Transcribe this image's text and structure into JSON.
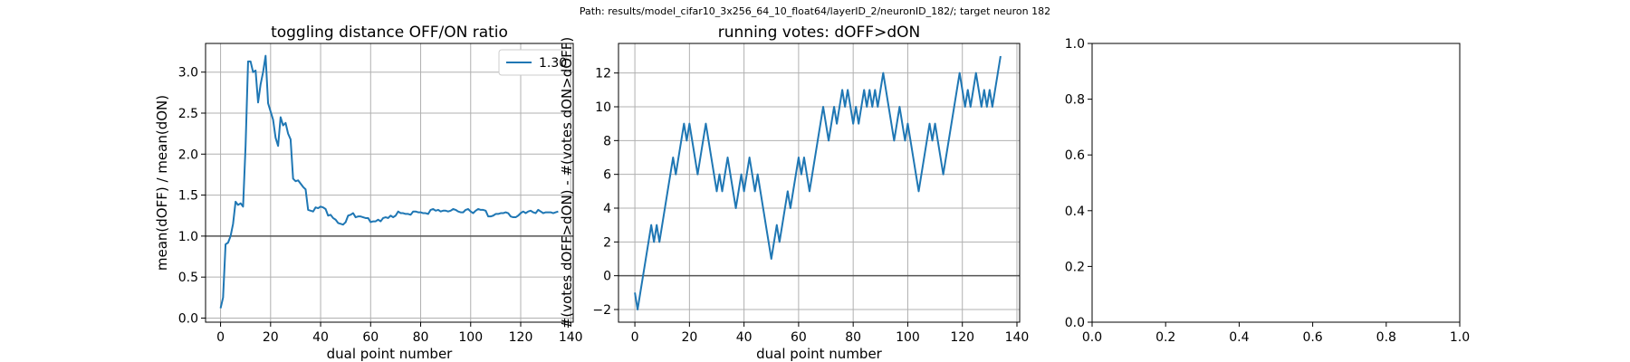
{
  "suptitle": "Path: results/model_cifar10_3x256_64_10_float64/layerID_2/neuronID_182/; target neuron 182",
  "line_color": "#1f77b4",
  "ref_line_color": "#555555",
  "chart_data": [
    {
      "type": "line",
      "title": "toggling distance OFF/ON ratio",
      "xlabel": "dual point number",
      "ylabel": "mean(dOFF) / mean(dON)",
      "xlim": [
        -6,
        141
      ],
      "ylim": [
        -0.05,
        3.35
      ],
      "xticks": [
        0,
        20,
        40,
        60,
        80,
        100,
        120,
        140
      ],
      "yticks": [
        0.0,
        0.5,
        1.0,
        1.5,
        2.0,
        2.5,
        3.0
      ],
      "ytick_labels": [
        "0.0",
        "0.5",
        "1.0",
        "1.5",
        "2.0",
        "2.5",
        "3.0"
      ],
      "grid": true,
      "reference_line": 1.0,
      "legend": {
        "position": "top-right",
        "entries": [
          "1.30"
        ]
      },
      "series": [
        {
          "name": "1.30",
          "values": [
            0.12,
            0.25,
            0.9,
            0.92,
            1.0,
            1.15,
            1.42,
            1.38,
            1.4,
            1.36,
            2.1,
            3.13,
            3.13,
            3.0,
            3.02,
            2.63,
            2.85,
            3.0,
            3.2,
            2.62,
            2.52,
            2.42,
            2.2,
            2.1,
            2.45,
            2.35,
            2.38,
            2.25,
            2.18,
            1.7,
            1.67,
            1.68,
            1.64,
            1.6,
            1.57,
            1.32,
            1.31,
            1.3,
            1.35,
            1.34,
            1.36,
            1.35,
            1.33,
            1.25,
            1.26,
            1.22,
            1.2,
            1.16,
            1.15,
            1.14,
            1.17,
            1.25,
            1.26,
            1.28,
            1.23,
            1.24,
            1.24,
            1.23,
            1.22,
            1.22,
            1.17,
            1.18,
            1.18,
            1.2,
            1.18,
            1.22,
            1.23,
            1.22,
            1.25,
            1.23,
            1.25,
            1.3,
            1.28,
            1.28,
            1.27,
            1.27,
            1.26,
            1.3,
            1.3,
            1.29,
            1.29,
            1.28,
            1.28,
            1.27,
            1.32,
            1.33,
            1.31,
            1.32,
            1.3,
            1.31,
            1.31,
            1.3,
            1.31,
            1.33,
            1.32,
            1.3,
            1.29,
            1.29,
            1.32,
            1.33,
            1.3,
            1.28,
            1.31,
            1.33,
            1.32,
            1.32,
            1.31,
            1.24,
            1.24,
            1.25,
            1.27,
            1.27,
            1.28,
            1.28,
            1.29,
            1.28,
            1.24,
            1.23,
            1.23,
            1.25,
            1.28,
            1.3,
            1.28,
            1.3,
            1.31,
            1.29,
            1.28,
            1.32,
            1.3,
            1.28,
            1.29,
            1.29,
            1.29,
            1.28,
            1.29,
            1.3
          ]
        }
      ]
    },
    {
      "type": "line",
      "title": "running votes: dOFF>dON",
      "xlabel": "dual point number",
      "ylabel": "#(votes dOFF>dON) - #(votes dON>dOFF)",
      "xlim": [
        -6,
        141
      ],
      "ylim": [
        -2.75,
        13.75
      ],
      "xticks": [
        0,
        20,
        40,
        60,
        80,
        100,
        120,
        140
      ],
      "yticks": [
        -2,
        0,
        2,
        4,
        6,
        8,
        10,
        12
      ],
      "ytick_labels": [
        "−2",
        "0",
        "2",
        "4",
        "6",
        "8",
        "10",
        "12"
      ],
      "grid": true,
      "reference_line": 0,
      "series": [
        {
          "values": [
            -1,
            -2,
            -1,
            0,
            1,
            2,
            3,
            2,
            3,
            2,
            3,
            4,
            5,
            6,
            7,
            6,
            7,
            8,
            9,
            8,
            9,
            8,
            7,
            6,
            7,
            8,
            9,
            8,
            7,
            6,
            5,
            6,
            5,
            6,
            7,
            6,
            5,
            4,
            5,
            6,
            5,
            6,
            7,
            6,
            5,
            6,
            5,
            4,
            3,
            2,
            1,
            2,
            3,
            2,
            3,
            4,
            5,
            4,
            5,
            6,
            7,
            6,
            7,
            6,
            5,
            6,
            7,
            8,
            9,
            10,
            9,
            8,
            9,
            10,
            9,
            10,
            11,
            10,
            11,
            10,
            9,
            10,
            9,
            10,
            11,
            10,
            11,
            10,
            11,
            10,
            11,
            12,
            11,
            10,
            9,
            8,
            9,
            10,
            9,
            8,
            9,
            8,
            7,
            6,
            5,
            6,
            7,
            8,
            9,
            8,
            9,
            8,
            7,
            6,
            7,
            8,
            9,
            10,
            11,
            12,
            11,
            10,
            11,
            10,
            11,
            12,
            11,
            10,
            11,
            10,
            11,
            10,
            11,
            12,
            13
          ]
        }
      ]
    },
    {
      "type": "line",
      "title": "",
      "xlabel": "",
      "ylabel": "",
      "xlim": [
        0.0,
        1.0
      ],
      "ylim": [
        0.0,
        1.0
      ],
      "xticks": [
        0.0,
        0.2,
        0.4,
        0.6,
        0.8,
        1.0
      ],
      "yticks": [
        0.0,
        0.2,
        0.4,
        0.6,
        0.8,
        1.0
      ],
      "xtick_labels": [
        "0.0",
        "0.2",
        "0.4",
        "0.6",
        "0.8",
        "1.0"
      ],
      "ytick_labels": [
        "0.0",
        "0.2",
        "0.4",
        "0.6",
        "0.8",
        "1.0"
      ],
      "grid": false,
      "series": []
    }
  ]
}
